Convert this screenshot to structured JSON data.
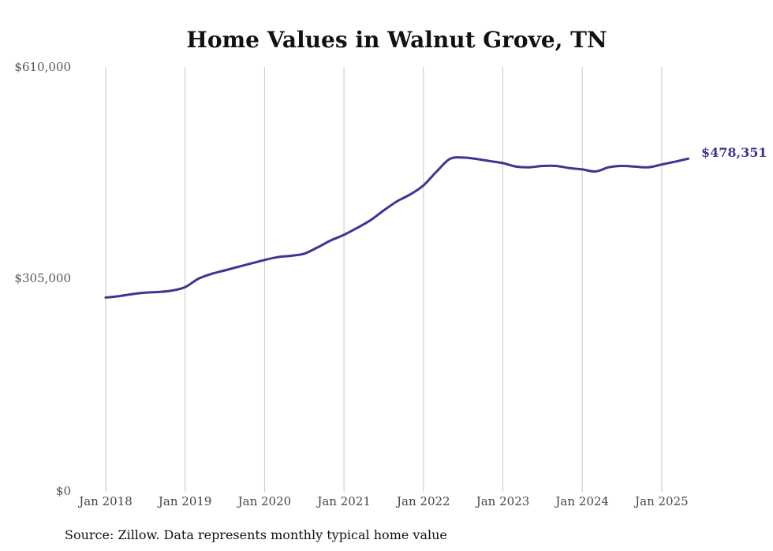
{
  "chart_data": {
    "type": "line",
    "title": "Home Values in Walnut Grove, TN",
    "xlabel": "",
    "ylabel": "",
    "x_ticks": [
      "Jan 2018",
      "Jan 2019",
      "Jan 2020",
      "Jan 2021",
      "Jan 2022",
      "Jan 2023",
      "Jan 2024",
      "Jan 2025"
    ],
    "y_ticks": [
      "$0",
      "$305,000",
      "$610,000"
    ],
    "ylim": [
      0,
      610000
    ],
    "xlim": [
      "2018-01",
      "2025-05"
    ],
    "grid": "vertical lines at x ticks",
    "line_color": "#3d3592",
    "series": [
      {
        "x": [
          "2018-01",
          "2018-03",
          "2018-05",
          "2018-07",
          "2018-09",
          "2018-11",
          "2019-01",
          "2019-03",
          "2019-05",
          "2019-07",
          "2019-09",
          "2019-11",
          "2020-01",
          "2020-03",
          "2020-05",
          "2020-07",
          "2020-09",
          "2020-11",
          "2021-01",
          "2021-03",
          "2021-05",
          "2021-07",
          "2021-09",
          "2021-11",
          "2022-01",
          "2022-03",
          "2022-05",
          "2022-07",
          "2022-09",
          "2022-11",
          "2023-01",
          "2023-03",
          "2023-05",
          "2023-07",
          "2023-09",
          "2023-11",
          "2024-01",
          "2024-03",
          "2024-05",
          "2024-07",
          "2024-09",
          "2024-11",
          "2025-01",
          "2025-03",
          "2025-05"
        ],
        "values": [
          279000,
          281000,
          284000,
          286000,
          287000,
          289000,
          294000,
          306000,
          313000,
          318000,
          323000,
          328000,
          333000,
          337000,
          339000,
          342000,
          351000,
          361000,
          369000,
          379000,
          390000,
          404000,
          417000,
          427000,
          440000,
          460000,
          478000,
          480000,
          478000,
          475000,
          472000,
          467000,
          466000,
          468000,
          468000,
          465000,
          463000,
          460000,
          466000,
          468000,
          467000,
          466000,
          470000,
          474000,
          478351
        ]
      }
    ],
    "end_label": "$478,351",
    "source": "Source: Zillow. Data represents monthly typical home value"
  }
}
